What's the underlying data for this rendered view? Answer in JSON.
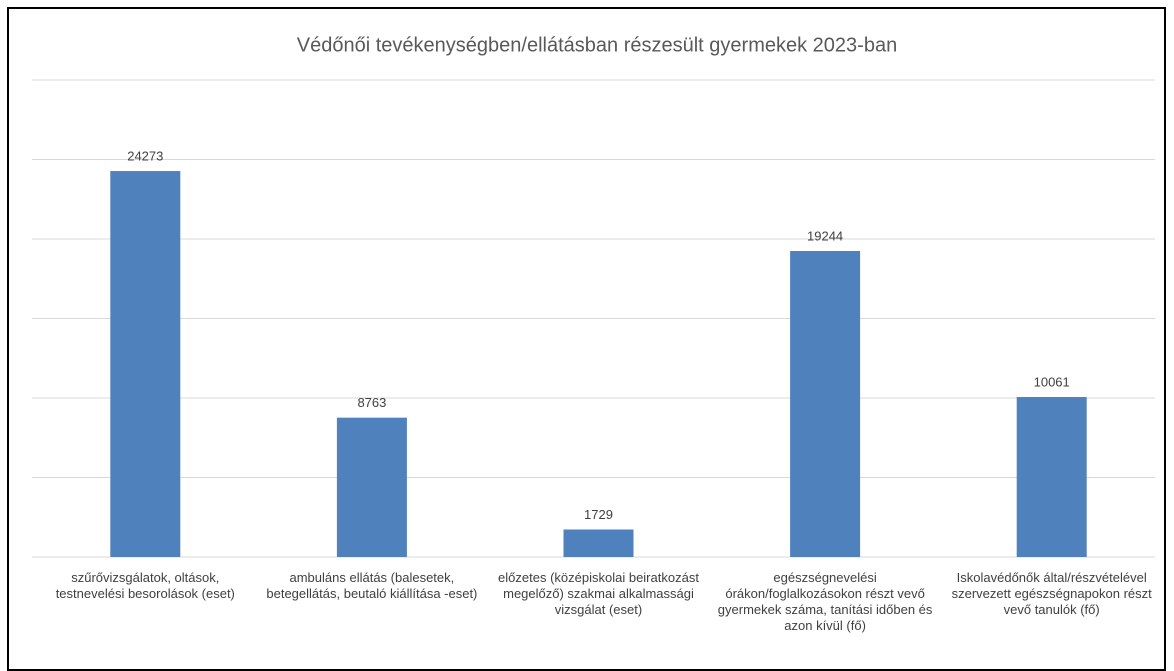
{
  "chart_data": {
    "type": "bar",
    "title": "Védőnői tevékenységben/ellátásban részesült gyermekek 2023-ban",
    "categories": [
      "szűrővizsgálatok, oltások, testnevelési besorolások (eset)",
      "ambuláns ellátás (balesetek, betegellátás, beutaló kiállítása -eset)",
      "előzetes (középiskolai beiratkozást megelőző) szakmai alkalmassági vizsgálat (eset)",
      "egészségnevelési órákon/foglalkozásokon részt vevő gyermekek száma, tanítási időben és azon kívül (fő)",
      "Iskolavédőnők által/részvételével szervezett egészségnapokon részt vevő tanulók (fő)"
    ],
    "values": [
      24273,
      8763,
      1729,
      19244,
      10061
    ],
    "color": "#4f81bd",
    "ylim": [
      0,
      30000
    ],
    "yticks": [
      0,
      5000,
      10000,
      15000,
      20000,
      25000,
      30000
    ],
    "grid": true
  }
}
